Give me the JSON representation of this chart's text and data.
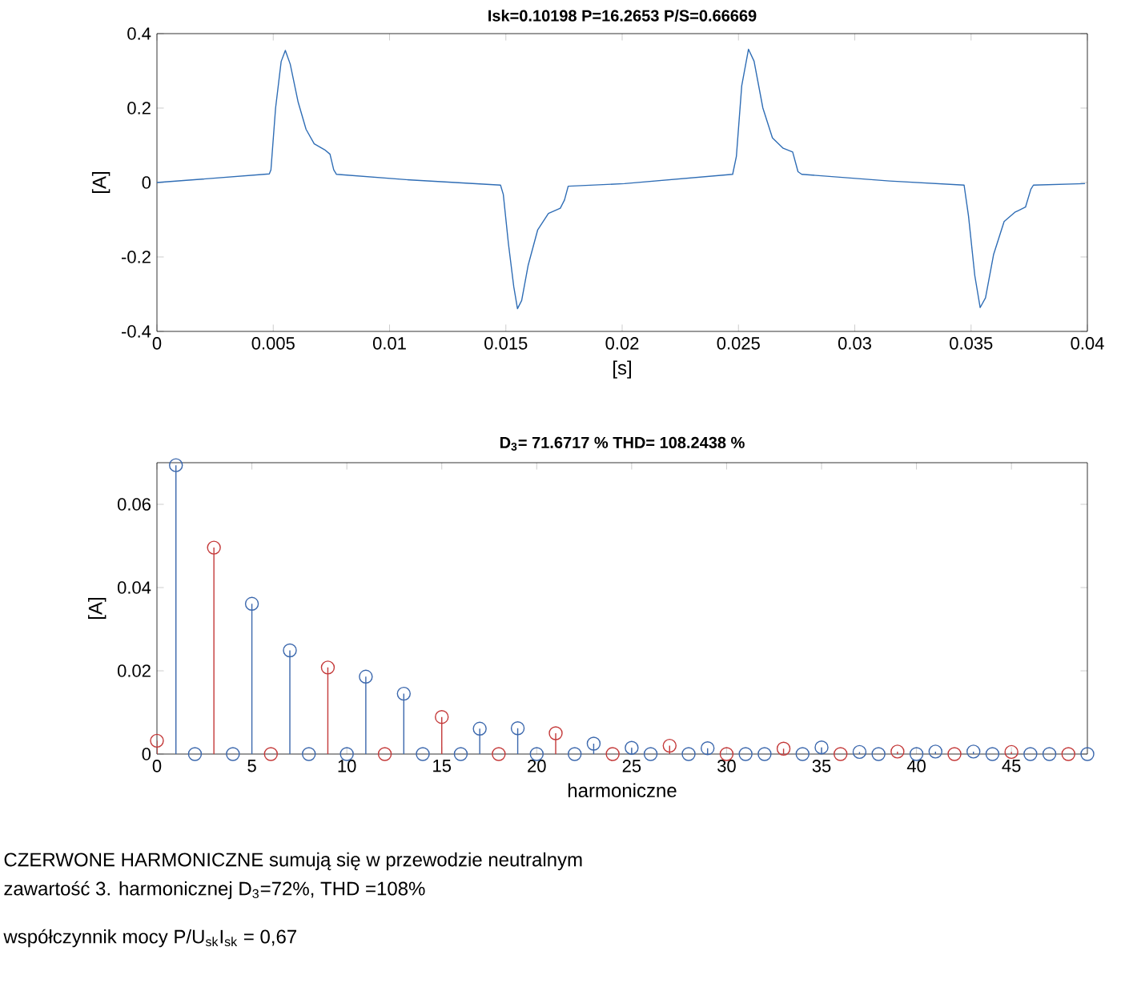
{
  "chart_data": [
    {
      "type": "line",
      "title": "Isk=0.10198    P=16.2653    P/S=0.66669",
      "xlabel": "[s]",
      "ylabel": "[A]",
      "xlim": [
        0,
        0.04
      ],
      "ylim": [
        -0.4,
        0.4
      ],
      "xticks": [
        0,
        0.005,
        0.01,
        0.015,
        0.02,
        0.025,
        0.03,
        0.035,
        0.04
      ],
      "yticks": [
        -0.4,
        -0.2,
        0,
        0.2,
        0.4
      ],
      "series": [
        {
          "color": "#2f6db5",
          "x": [
            0,
            0.00483,
            0.0049,
            0.0051,
            0.00534,
            0.00552,
            0.00573,
            0.00607,
            0.00641,
            0.00676,
            0.00721,
            0.00744,
            0.0076,
            0.00772,
            0.01088,
            0.01477,
            0.01489,
            0.01511,
            0.01534,
            0.0155,
            0.01568,
            0.01596,
            0.01637,
            0.01683,
            0.01734,
            0.01752,
            0.01768,
            0.0201,
            0.02475,
            0.02491,
            0.02514,
            0.02543,
            0.02567,
            0.02605,
            0.02646,
            0.02692,
            0.02733,
            0.02756,
            0.02772,
            0.0315,
            0.0347,
            0.03489,
            0.03516,
            0.03539,
            0.03562,
            0.03597,
            0.03642,
            0.03688,
            0.03734,
            0.03757,
            0.03768,
            0.0399
          ],
          "values": [
            0,
            0.023,
            0.034,
            0.2,
            0.325,
            0.355,
            0.318,
            0.216,
            0.143,
            0.104,
            0.088,
            0.076,
            0.034,
            0.022,
            0.007,
            -0.007,
            -0.032,
            -0.164,
            -0.28,
            -0.339,
            -0.317,
            -0.222,
            -0.127,
            -0.083,
            -0.069,
            -0.047,
            -0.01,
            -0.003,
            0.022,
            0.07,
            0.26,
            0.358,
            0.326,
            0.2,
            0.12,
            0.092,
            0.082,
            0.029,
            0.022,
            0.004,
            -0.007,
            -0.09,
            -0.25,
            -0.336,
            -0.31,
            -0.193,
            -0.105,
            -0.08,
            -0.066,
            -0.018,
            -0.007,
            -0.003
          ]
        }
      ]
    },
    {
      "type": "lollipop",
      "title": "D$_{3}$= 71.6717 %    THD= 108.2438 %",
      "xlabel": "harmoniczne",
      "ylabel": "[A]",
      "xlim": [
        0,
        49
      ],
      "ylim": [
        0,
        0.07
      ],
      "xticks": [
        0,
        5,
        10,
        15,
        20,
        25,
        30,
        35,
        40,
        45
      ],
      "yticks": [
        0,
        0.02,
        0.04,
        0.06
      ],
      "marker": "circle",
      "series": [
        {
          "color": "#3c68ad",
          "x": [
            1,
            2,
            4,
            5,
            7,
            8,
            10,
            11,
            13,
            14,
            16,
            17,
            19,
            20,
            22,
            23,
            25,
            26,
            28,
            29,
            31,
            32,
            34,
            35,
            37,
            38,
            40,
            41,
            43,
            44,
            46,
            47,
            49
          ],
          "values": [
            0.0694,
            0,
            0,
            0.0361,
            0.0249,
            0,
            0,
            0.0186,
            0.0145,
            0,
            0,
            0.0061,
            0.0062,
            0,
            0,
            0.0025,
            0.0015,
            0,
            0,
            0.0014,
            0,
            0,
            0,
            0.0016,
            0.0005,
            0,
            0,
            0.0006,
            0.0006,
            0,
            0,
            0,
            0
          ]
        },
        {
          "color": "#c43a3a",
          "x": [
            0,
            3,
            6,
            9,
            12,
            15,
            18,
            21,
            24,
            27,
            30,
            33,
            36,
            39,
            42,
            45,
            48
          ],
          "values": [
            0.0032,
            0.0496,
            0,
            0.0208,
            0,
            0.0089,
            0,
            0.005,
            0,
            0.002,
            0,
            0.0013,
            0,
            0.0006,
            0,
            0.0005,
            0
          ]
        }
      ],
      "annotations": [
        "CZERWONE HARMONICZNE sumują się w przewodzie neutralnym",
        "zawartość 3. harmonicznej D$_{3}$=72%, THD =108%",
        "współczynnik mocy P/U$_{sk}$I$_{sk}$ = 0,67"
      ]
    }
  ]
}
